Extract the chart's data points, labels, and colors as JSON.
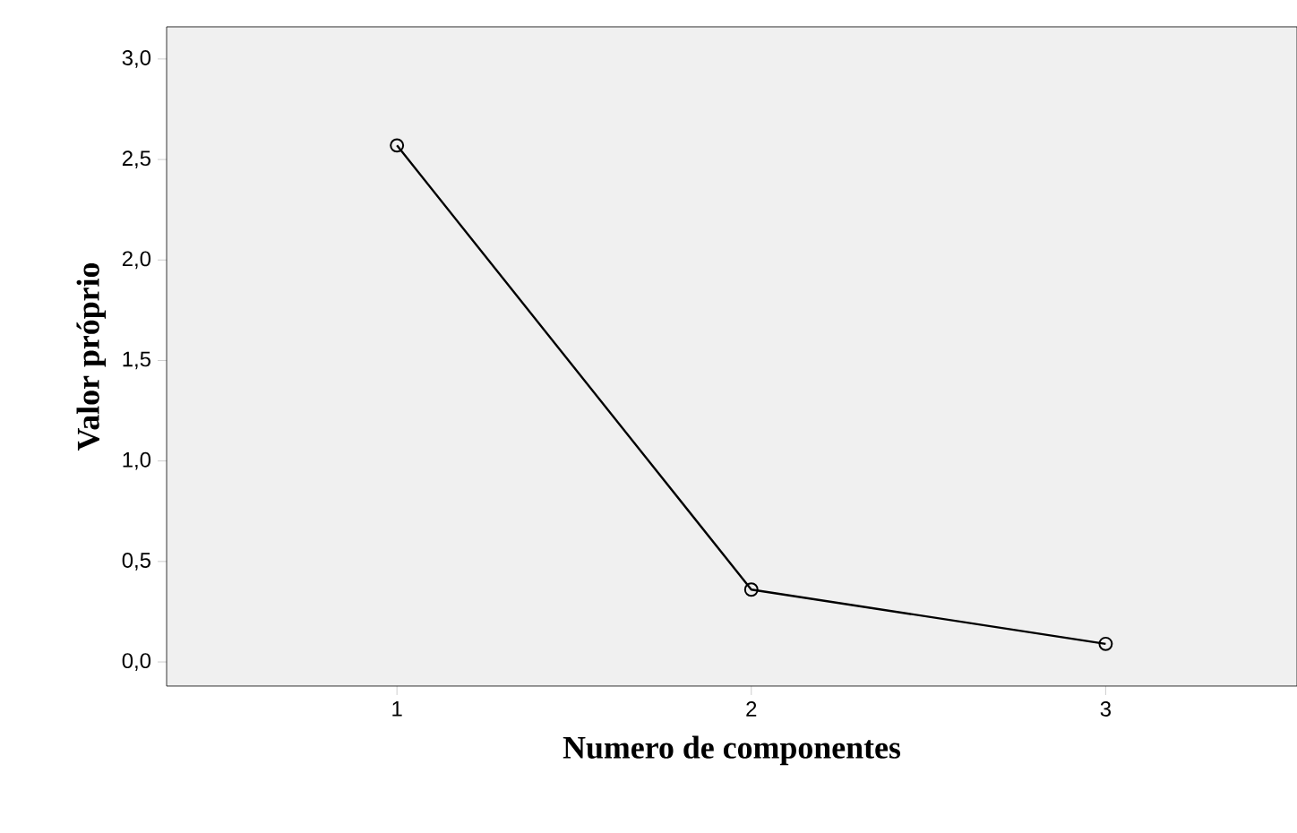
{
  "chart_data": {
    "type": "line",
    "xlabel": "Numero de componentes",
    "ylabel": "Valor próprio",
    "x": [
      1,
      2,
      3
    ],
    "values": [
      2.57,
      0.36,
      0.09
    ],
    "color": "#000000",
    "marker": "circle",
    "line_style": "solid",
    "xlim": [
      0.35,
      3.54
    ],
    "ylim": [
      -0.12,
      3.16
    ],
    "xticks": [
      1,
      2,
      3
    ],
    "yticks": [
      {
        "value": 0,
        "label": "0,0"
      },
      {
        "value": 0.5,
        "label": "0,5"
      },
      {
        "value": 1,
        "label": "1,0"
      },
      {
        "value": 1.5,
        "label": "1,5"
      },
      {
        "value": 2,
        "label": "2,0"
      },
      {
        "value": 2.5,
        "label": "2,5"
      },
      {
        "value": 3,
        "label": "3,0"
      }
    ],
    "grid": false
  }
}
